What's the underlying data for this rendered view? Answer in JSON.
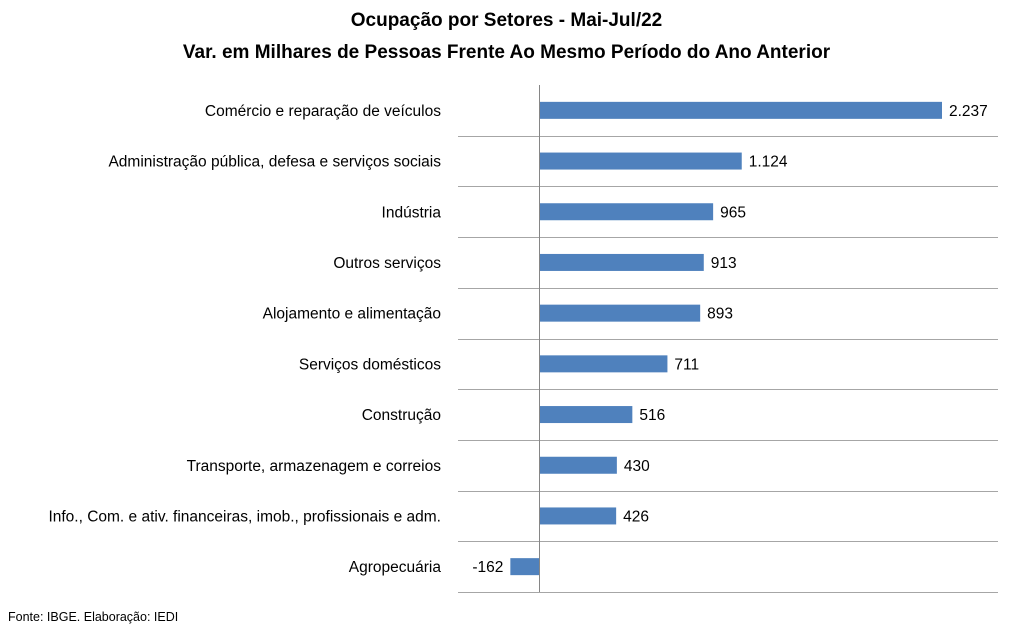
{
  "title": "Ocupação por Setores - Mai-Jul/22",
  "subtitle": "Var. em Milhares de Pessoas Frente Ao Mesmo Período do Ano Anterior",
  "source": "Fonte: IBGE. Elaboração: IEDI",
  "colors": {
    "bar": "#4f81bd",
    "grid": "#a6a6a6",
    "axis": "#868686"
  },
  "chart_data": {
    "type": "bar",
    "orientation": "horizontal",
    "title": "Ocupação por Setores - Mai-Jul/22",
    "subtitle": "Var. em Milhares de Pessoas Frente Ao Mesmo Período do Ano Anterior",
    "categories": [
      "Comércio e reparação de veículos",
      "Administração pública, defesa e serviços sociais",
      "Indústria",
      "Outros serviços",
      "Alojamento e alimentação",
      "Serviços domésticos",
      "Construção",
      "Transporte, armazenagem e correios",
      "Info., Com. e ativ. financeiras, imob., profissionais e adm.",
      "Agropecuária"
    ],
    "values": [
      2237,
      1124,
      965,
      913,
      893,
      711,
      516,
      430,
      426,
      -162
    ],
    "value_labels": [
      "2.237",
      "1.124",
      "965",
      "913",
      "893",
      "711",
      "516",
      "430",
      "426",
      "-162"
    ],
    "xlim": [
      -450,
      2550
    ],
    "grid": "horizontal separators between categories",
    "legend": "none"
  }
}
